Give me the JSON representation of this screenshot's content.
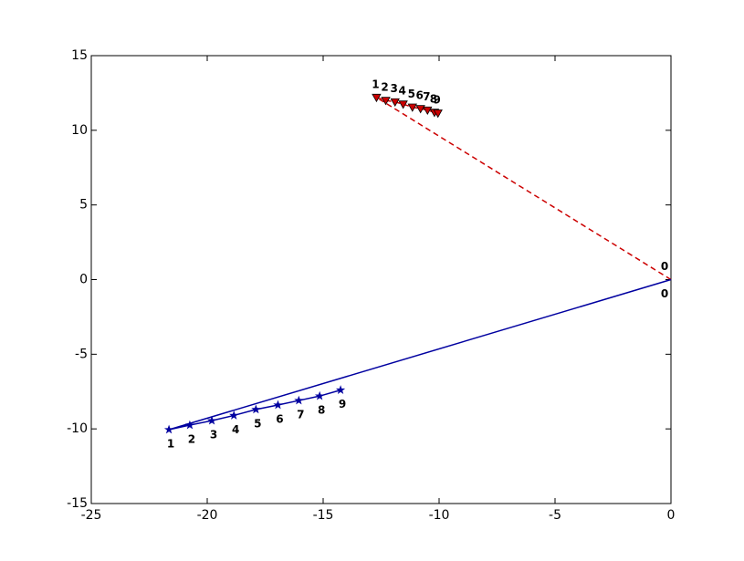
{
  "chart_data": {
    "type": "line",
    "xlim": [
      -25,
      0
    ],
    "ylim": [
      -15,
      15
    ],
    "xticks": [
      -25,
      -20,
      -15,
      -10,
      -5,
      0
    ],
    "yticks": [
      -15,
      -10,
      -5,
      0,
      5,
      10,
      15
    ],
    "series": [
      {
        "color": "#cc0000",
        "marker": "triangle",
        "dashed": true,
        "x": [
          0,
          -12.7,
          -12.3,
          -11.9,
          -11.55,
          -11.15,
          -10.8,
          -10.5,
          -10.2,
          -10.05
        ],
        "values": [
          0,
          12.2,
          12.0,
          11.9,
          11.75,
          11.55,
          11.45,
          11.35,
          11.2,
          11.15
        ],
        "point_labels": [
          "0",
          "1",
          "2",
          "3",
          "4",
          "5",
          "6",
          "7",
          "8",
          "9"
        ]
      },
      {
        "color": "#0000a0",
        "marker": "star",
        "dashed": false,
        "x": [
          0,
          -21.65,
          -20.75,
          -19.8,
          -18.85,
          -17.9,
          -16.95,
          -16.05,
          -15.15,
          -14.25
        ],
        "values": [
          0,
          -10.05,
          -9.75,
          -9.45,
          -9.1,
          -8.7,
          -8.4,
          -8.1,
          -7.8,
          -7.4
        ],
        "point_labels": [
          "0",
          "1",
          "2",
          "3",
          "4",
          "5",
          "6",
          "7",
          "8",
          "9"
        ]
      }
    ]
  }
}
